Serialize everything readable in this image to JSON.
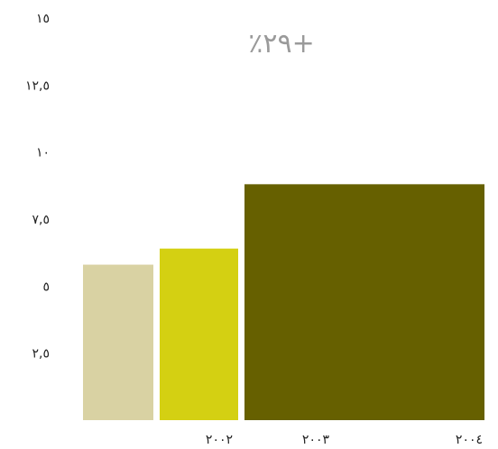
{
  "chart_data": {
    "type": "bar",
    "categories": [
      "٢٠٠٢",
      "٢٠٠٣",
      "٢٠٠٤"
    ],
    "values": [
      5.8,
      6.4,
      8.8
    ],
    "ylim": [
      0,
      15
    ],
    "yticks": [
      {
        "value": 2.5,
        "label": "٢,٥"
      },
      {
        "value": 5,
        "label": "٥"
      },
      {
        "value": 7.5,
        "label": "٧,٥"
      },
      {
        "value": 10,
        "label": "١٠"
      },
      {
        "value": 12.5,
        "label": "١٢,٥"
      },
      {
        "value": 15,
        "label": "١٥"
      }
    ],
    "annotation": "٪٢٩+",
    "grid": false,
    "colors": [
      "#d9d2a3",
      "#d4d012",
      "#666000"
    ]
  }
}
